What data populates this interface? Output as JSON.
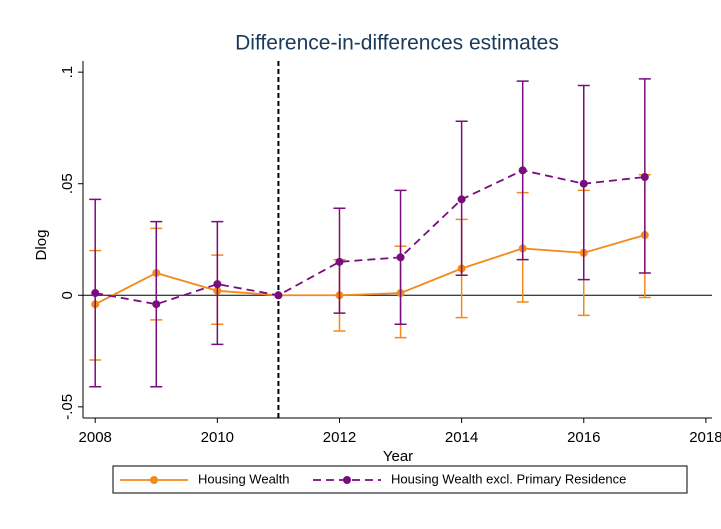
{
  "chart_data": {
    "type": "errorbar-line",
    "title": "Difference-in-differences estimates",
    "x_label": "Year",
    "y_label": "Dlog",
    "x": [
      2008,
      2009,
      2010,
      2011,
      2012,
      2013,
      2014,
      2015,
      2016,
      2017
    ],
    "xlim": [
      2007.8,
      2018.1
    ],
    "xticks": [
      2008,
      2010,
      2012,
      2014,
      2016,
      2018
    ],
    "ylim": [
      -0.055,
      0.105
    ],
    "yticks": [
      {
        "value": -0.05,
        "label": "-.05"
      },
      {
        "value": 0,
        "label": "0"
      },
      {
        "value": 0.05,
        "label": ".05"
      },
      {
        "value": 0.1,
        "label": ".1"
      }
    ],
    "reference_line_x": 2011,
    "reference_line_y": 0,
    "series": [
      {
        "name": "Housing Wealth",
        "color": "#f28a1c",
        "dash": false,
        "values": [
          -0.004,
          0.01,
          0.002,
          0,
          0.0,
          0.001,
          0.012,
          0.021,
          0.019,
          0.027
        ],
        "ci_low": [
          -0.029,
          -0.011,
          -0.013,
          null,
          -0.016,
          -0.019,
          -0.01,
          -0.003,
          -0.009,
          -0.001
        ],
        "ci_high": [
          0.02,
          0.03,
          0.018,
          null,
          0.016,
          0.022,
          0.034,
          0.046,
          0.047,
          0.054
        ]
      },
      {
        "name": "Housing Wealth excl. Primary Residence",
        "color": "#7a0d7e",
        "dash": true,
        "values": [
          0.001,
          -0.004,
          0.005,
          0,
          0.015,
          0.017,
          0.043,
          0.056,
          0.05,
          0.053
        ],
        "ci_low": [
          -0.041,
          -0.041,
          -0.022,
          null,
          -0.008,
          -0.013,
          0.009,
          0.016,
          0.007,
          0.01
        ],
        "ci_high": [
          0.043,
          0.033,
          0.033,
          null,
          0.039,
          0.047,
          0.078,
          0.096,
          0.094,
          0.097
        ]
      }
    ]
  }
}
